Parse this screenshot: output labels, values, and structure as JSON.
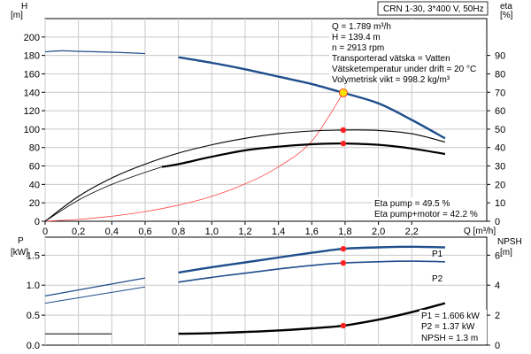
{
  "header": {
    "title": "CRN 1-30, 3*400 V, 50Hz"
  },
  "colors": {
    "blue": "#1f4e8c",
    "black": "#000000",
    "thin_red": "#ff4444",
    "marker": "#ff2020",
    "duty_point": "#ffe000",
    "grid": "#c8c8c8"
  },
  "chart_data": [
    {
      "type": "line",
      "name": "upper",
      "xlabel": "Q [m³/h]",
      "ylabel": "H [m]",
      "ylabel_parts": [
        "H",
        "[m]"
      ],
      "y2label_parts": [
        "eta",
        "[%]"
      ],
      "xlim": [
        0,
        2.65
      ],
      "ylim": [
        0,
        220
      ],
      "y2lim": [
        0,
        110
      ],
      "xticks": [
        "0",
        "0,2",
        "0,4",
        "0,6",
        "0,8",
        "1,0",
        "1,2",
        "1,4",
        "1,6",
        "1,8",
        "2,0",
        "2,2"
      ],
      "yticks": [
        "0",
        "20",
        "40",
        "60",
        "80",
        "100",
        "120",
        "140",
        "160",
        "180",
        "200"
      ],
      "y2ticks": [
        "0",
        "10",
        "20",
        "30",
        "40",
        "50",
        "60",
        "70",
        "80",
        "90"
      ],
      "grid": true,
      "info_lines": [
        "Q = 1.789 m³/h",
        "H = 139.4 m",
        "n = 2913 rpm",
        "Transporterad vätska = Vatten",
        "Vätsketemperatur under drift = 20 °C",
        "Volymetrisk vikt = 998.2 kg/m³"
      ],
      "eta_labels": [
        "Eta pump = 49.5 %",
        "Eta pump+motor = 42.2 %"
      ],
      "series": [
        {
          "axis": "left",
          "x": [
            0,
            0.1,
            0.2,
            0.4,
            0.6,
            0.8,
            1.0,
            1.2,
            1.4,
            1.6,
            1.789,
            2.0,
            2.2,
            2.4
          ],
          "values": [
            184,
            185,
            184.5,
            183.5,
            182,
            178,
            172,
            165,
            157,
            149,
            139.4,
            128,
            110,
            90
          ]
        },
        {
          "axis": "right",
          "x": [
            0,
            0.2,
            0.4,
            0.6,
            0.8,
            1.0,
            1.2,
            1.4,
            1.6,
            1.789,
            2.0,
            2.2,
            2.4
          ],
          "values": [
            0,
            13.5,
            23.5,
            31,
            37,
            41.5,
            45,
            47.5,
            49,
            49.5,
            49.3,
            47.5,
            43
          ]
        },
        {
          "axis": "right",
          "x": [
            0,
            0.2,
            0.4,
            0.6,
            0.7,
            0.8,
            1.0,
            1.2,
            1.4,
            1.6,
            1.789,
            2.0,
            2.2,
            2.4
          ],
          "values": [
            0,
            11.5,
            20,
            26.5,
            29.5,
            31,
            35,
            38.5,
            40.5,
            41.8,
            42.2,
            41.5,
            39.5,
            36.5
          ]
        },
        {
          "axis": "left",
          "x": [
            0,
            0.2,
            0.4,
            0.6,
            0.8,
            1.0,
            1.2,
            1.4,
            1.6,
            1.789
          ],
          "values": [
            0,
            2,
            5.5,
            10.5,
            17.5,
            27,
            40.5,
            59,
            87,
            139.4
          ]
        }
      ],
      "markers": [
        {
          "axis": "left",
          "x": 1.789,
          "y": 139.4
        },
        {
          "axis": "right",
          "x": 1.789,
          "y": 49.5
        },
        {
          "axis": "right",
          "x": 1.789,
          "y": 42.2
        }
      ]
    },
    {
      "type": "line",
      "name": "lower",
      "ylabel": "P [kW]",
      "ylabel_parts": [
        "P",
        "[kW]"
      ],
      "y2label": "NPSH [m]",
      "y2label_parts": [
        "NPSH",
        "[m]"
      ],
      "xlim": [
        0,
        2.65
      ],
      "ylim": [
        0,
        1.8
      ],
      "y2lim": [
        0,
        7.2
      ],
      "yticks": [
        "0.0",
        "0.5",
        "1.0",
        "1.5"
      ],
      "y2ticks": [
        "0",
        "2",
        "4",
        "6"
      ],
      "grid": true,
      "values_text": [
        "P1 = 1.606 kW",
        "P2 = 1.37 kW",
        "NPSH = 1.3 m"
      ],
      "series": [
        {
          "name": "P1",
          "axis": "left",
          "x": [
            0,
            0.2,
            0.4,
            0.6,
            0.8,
            1.0,
            1.2,
            1.4,
            1.6,
            1.789,
            2.0,
            2.2,
            2.4
          ],
          "values": [
            0.82,
            0.92,
            1.02,
            1.12,
            1.21,
            1.3,
            1.38,
            1.46,
            1.54,
            1.606,
            1.63,
            1.64,
            1.63
          ]
        },
        {
          "name": "P2",
          "axis": "left",
          "x": [
            0,
            0.2,
            0.4,
            0.6,
            0.8,
            1.0,
            1.2,
            1.4,
            1.6,
            1.789,
            2.0,
            2.2,
            2.4
          ],
          "values": [
            0.7,
            0.79,
            0.88,
            0.97,
            1.05,
            1.13,
            1.2,
            1.27,
            1.33,
            1.37,
            1.39,
            1.4,
            1.39
          ]
        },
        {
          "axis": "right",
          "x": [
            0,
            0.4,
            0.8,
            1.0,
            1.2,
            1.4,
            1.6,
            1.789,
            2.0,
            2.2,
            2.4
          ],
          "values": [
            0.75,
            0.75,
            0.76,
            0.8,
            0.88,
            0.98,
            1.12,
            1.3,
            1.7,
            2.2,
            2.8
          ]
        }
      ],
      "markers": [
        {
          "axis": "left",
          "x": 1.789,
          "y": 1.606
        },
        {
          "axis": "left",
          "x": 1.789,
          "y": 1.37
        },
        {
          "axis": "right",
          "x": 1.789,
          "y": 1.3
        }
      ]
    }
  ]
}
